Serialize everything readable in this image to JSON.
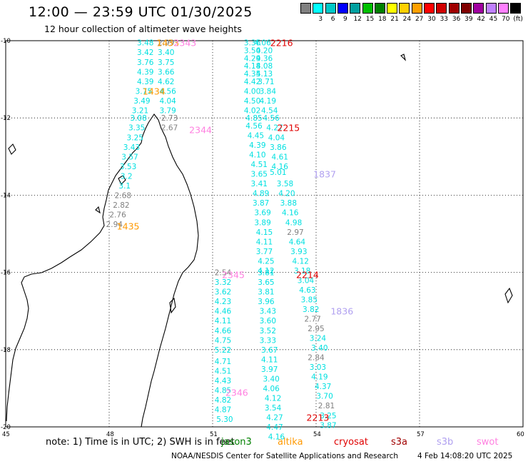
{
  "header": {
    "title": "12:00 — 23:59 UTC 01/30/2025",
    "subtitle": "12 hour collection of altimeter wave heights"
  },
  "legend": {
    "items": [
      {
        "label": "",
        "color": "#808080"
      },
      {
        "label": "3",
        "color": "#00ffff"
      },
      {
        "label": "6",
        "color": "#00c8c8"
      },
      {
        "label": "9",
        "color": "#0000ff"
      },
      {
        "label": "12",
        "color": "#00a0a0"
      },
      {
        "label": "15",
        "color": "#00c000"
      },
      {
        "label": "18",
        "color": "#008000"
      },
      {
        "label": "21",
        "color": "#ffff00"
      },
      {
        "label": "24",
        "color": "#ffd000"
      },
      {
        "label": "27",
        "color": "#ffa000"
      },
      {
        "label": "30",
        "color": "#ff0000"
      },
      {
        "label": "33",
        "color": "#d00000"
      },
      {
        "label": "36",
        "color": "#a00000"
      },
      {
        "label": "39",
        "color": "#800000"
      },
      {
        "label": "42",
        "color": "#a000a0"
      },
      {
        "label": "45",
        "color": "#c080ff"
      },
      {
        "label": "70",
        "color": "#ff80ff"
      },
      {
        "label": "(ft)",
        "color": "#000000"
      }
    ]
  },
  "axes": {
    "lat_labels": [
      "-10",
      "-12",
      "-14",
      "-16",
      "-18",
      "-20"
    ],
    "lon_labels": [
      "45",
      "48",
      "51",
      "54",
      "57",
      "60"
    ]
  },
  "chart_data": {
    "type": "scatter",
    "x_range": [
      45,
      60
    ],
    "y_range": [
      -20,
      -10
    ],
    "colors": {
      "cyan": "#00e0e0",
      "gray": "#808080",
      "orange": "#ff9900",
      "pink": "#ff80e0",
      "red": "#e00000",
      "lavender": "#b0a0f0"
    },
    "points": [
      {
        "lon": 49.05,
        "lat": -10.05,
        "value": "3.48",
        "color": "cyan"
      },
      {
        "lon": 49.05,
        "lat": -10.3,
        "value": "3.42",
        "color": "cyan"
      },
      {
        "lon": 49.05,
        "lat": -10.55,
        "value": "3.76",
        "color": "cyan"
      },
      {
        "lon": 49.05,
        "lat": -10.8,
        "value": "4.39",
        "color": "cyan"
      },
      {
        "lon": 49.05,
        "lat": -11.05,
        "value": "4.39",
        "color": "cyan"
      },
      {
        "lon": 49.0,
        "lat": -11.3,
        "value": "3.75",
        "color": "cyan"
      },
      {
        "lon": 48.95,
        "lat": -11.55,
        "value": "3.49",
        "color": "cyan"
      },
      {
        "lon": 48.9,
        "lat": -11.8,
        "value": "3.21",
        "color": "cyan"
      },
      {
        "lon": 48.85,
        "lat": -12.0,
        "value": "3.08",
        "color": "cyan"
      },
      {
        "lon": 48.8,
        "lat": -12.25,
        "value": "3.35",
        "color": "cyan"
      },
      {
        "lon": 48.75,
        "lat": -12.5,
        "value": "3.25",
        "color": "cyan"
      },
      {
        "lon": 48.65,
        "lat": -12.75,
        "value": "3.43",
        "color": "cyan"
      },
      {
        "lon": 48.6,
        "lat": -13.0,
        "value": "3.57",
        "color": "cyan"
      },
      {
        "lon": 48.55,
        "lat": -13.25,
        "value": "3.53",
        "color": "cyan"
      },
      {
        "lon": 48.5,
        "lat": -13.5,
        "value": "3.2",
        "color": "cyan"
      },
      {
        "lon": 48.45,
        "lat": -13.75,
        "value": "3.1",
        "color": "cyan"
      },
      {
        "lon": 48.4,
        "lat": -14.0,
        "value": "2.68",
        "color": "gray"
      },
      {
        "lon": 48.35,
        "lat": -14.25,
        "value": "2.82",
        "color": "gray"
      },
      {
        "lon": 48.25,
        "lat": -14.5,
        "value": "2.76",
        "color": "gray"
      },
      {
        "lon": 48.15,
        "lat": -14.75,
        "value": "2.94",
        "color": "gray"
      },
      {
        "lon": 49.65,
        "lat": -10.05,
        "value": "2.99",
        "color": "gray"
      },
      {
        "lon": 49.65,
        "lat": -10.3,
        "value": "3.40",
        "color": "cyan"
      },
      {
        "lon": 49.65,
        "lat": -10.55,
        "value": "3.75",
        "color": "cyan"
      },
      {
        "lon": 49.65,
        "lat": -10.8,
        "value": "3.66",
        "color": "cyan"
      },
      {
        "lon": 49.65,
        "lat": -11.05,
        "value": "4.62",
        "color": "cyan"
      },
      {
        "lon": 49.7,
        "lat": -11.3,
        "value": "4.56",
        "color": "cyan"
      },
      {
        "lon": 49.7,
        "lat": -11.55,
        "value": "4.04",
        "color": "cyan"
      },
      {
        "lon": 49.7,
        "lat": -11.8,
        "value": "3.79",
        "color": "cyan"
      },
      {
        "lon": 49.75,
        "lat": -12.0,
        "value": "2.73",
        "color": "gray"
      },
      {
        "lon": 49.75,
        "lat": -12.25,
        "value": "2.67",
        "color": "gray"
      },
      {
        "lon": 51.3,
        "lat": -16.0,
        "value": "2.54",
        "color": "gray"
      },
      {
        "lon": 51.3,
        "lat": -16.25,
        "value": "3.32",
        "color": "cyan"
      },
      {
        "lon": 51.3,
        "lat": -16.5,
        "value": "3.62",
        "color": "cyan"
      },
      {
        "lon": 51.3,
        "lat": -16.75,
        "value": "4.23",
        "color": "cyan"
      },
      {
        "lon": 51.3,
        "lat": -17.0,
        "value": "4.46",
        "color": "cyan"
      },
      {
        "lon": 51.3,
        "lat": -17.25,
        "value": "4.11",
        "color": "cyan"
      },
      {
        "lon": 51.3,
        "lat": -17.5,
        "value": "4.66",
        "color": "cyan"
      },
      {
        "lon": 51.3,
        "lat": -17.75,
        "value": "4.75",
        "color": "cyan"
      },
      {
        "lon": 51.3,
        "lat": -18.0,
        "value": "5.22",
        "color": "cyan"
      },
      {
        "lon": 51.3,
        "lat": -18.3,
        "value": "4.71",
        "color": "cyan"
      },
      {
        "lon": 51.3,
        "lat": -18.55,
        "value": "4.51",
        "color": "cyan"
      },
      {
        "lon": 51.3,
        "lat": -18.8,
        "value": "4.43",
        "color": "cyan"
      },
      {
        "lon": 51.3,
        "lat": -19.05,
        "value": "4.85",
        "color": "cyan"
      },
      {
        "lon": 51.3,
        "lat": -19.3,
        "value": "4.82",
        "color": "cyan"
      },
      {
        "lon": 51.3,
        "lat": -19.55,
        "value": "4.87",
        "color": "cyan"
      },
      {
        "lon": 51.35,
        "lat": -19.8,
        "value": "5.30",
        "color": "cyan"
      },
      {
        "lon": 52.15,
        "lat": -10.05,
        "value": "3.36",
        "color": "cyan"
      },
      {
        "lon": 52.15,
        "lat": -10.25,
        "value": "3.50",
        "color": "cyan"
      },
      {
        "lon": 52.15,
        "lat": -10.45,
        "value": "4.29",
        "color": "cyan"
      },
      {
        "lon": 52.15,
        "lat": -10.65,
        "value": "4.18",
        "color": "cyan"
      },
      {
        "lon": 52.15,
        "lat": -10.85,
        "value": "4.35",
        "color": "cyan"
      },
      {
        "lon": 52.15,
        "lat": -11.05,
        "value": "4.42",
        "color": "cyan"
      },
      {
        "lon": 52.15,
        "lat": -11.3,
        "value": "4.00",
        "color": "cyan"
      },
      {
        "lon": 52.15,
        "lat": -11.55,
        "value": "4.50",
        "color": "cyan"
      },
      {
        "lon": 52.15,
        "lat": -11.8,
        "value": "4.02",
        "color": "cyan"
      },
      {
        "lon": 52.2,
        "lat": -12.0,
        "value": "4.85",
        "color": "cyan"
      },
      {
        "lon": 52.2,
        "lat": -12.2,
        "value": "4.56",
        "color": "cyan"
      },
      {
        "lon": 52.25,
        "lat": -12.45,
        "value": "4.45",
        "color": "cyan"
      },
      {
        "lon": 52.3,
        "lat": -12.7,
        "value": "4.39",
        "color": "cyan"
      },
      {
        "lon": 52.3,
        "lat": -12.95,
        "value": "4.10",
        "color": "cyan"
      },
      {
        "lon": 52.35,
        "lat": -13.2,
        "value": "4.51",
        "color": "cyan"
      },
      {
        "lon": 52.35,
        "lat": -13.45,
        "value": "3.65",
        "color": "cyan"
      },
      {
        "lon": 52.35,
        "lat": -13.7,
        "value": "3.41",
        "color": "cyan"
      },
      {
        "lon": 52.4,
        "lat": -13.95,
        "value": "4.89",
        "color": "cyan"
      },
      {
        "lon": 52.4,
        "lat": -14.2,
        "value": "3.87",
        "color": "cyan"
      },
      {
        "lon": 52.45,
        "lat": -14.45,
        "value": "3.69",
        "color": "cyan"
      },
      {
        "lon": 52.45,
        "lat": -14.7,
        "value": "3.89",
        "color": "cyan"
      },
      {
        "lon": 52.5,
        "lat": -14.95,
        "value": "4.15",
        "color": "cyan"
      },
      {
        "lon": 52.5,
        "lat": -15.2,
        "value": "4.11",
        "color": "cyan"
      },
      {
        "lon": 52.5,
        "lat": -15.45,
        "value": "3.77",
        "color": "cyan"
      },
      {
        "lon": 52.55,
        "lat": -15.7,
        "value": "4.25",
        "color": "cyan"
      },
      {
        "lon": 52.55,
        "lat": -15.95,
        "value": "4.12",
        "color": "cyan"
      },
      {
        "lon": 52.45,
        "lat": -10.05,
        "value": "4.06",
        "color": "cyan"
      },
      {
        "lon": 52.5,
        "lat": -10.25,
        "value": "4.20",
        "color": "cyan"
      },
      {
        "lon": 52.5,
        "lat": -10.45,
        "value": "4.36",
        "color": "cyan"
      },
      {
        "lon": 52.5,
        "lat": -10.65,
        "value": "4.08",
        "color": "cyan"
      },
      {
        "lon": 52.5,
        "lat": -10.85,
        "value": "4.13",
        "color": "cyan"
      },
      {
        "lon": 52.55,
        "lat": -11.05,
        "value": "3.71",
        "color": "cyan"
      },
      {
        "lon": 52.6,
        "lat": -11.3,
        "value": "3.84",
        "color": "cyan"
      },
      {
        "lon": 52.6,
        "lat": -11.55,
        "value": "4.19",
        "color": "cyan"
      },
      {
        "lon": 52.65,
        "lat": -11.8,
        "value": "4.54",
        "color": "cyan"
      },
      {
        "lon": 52.7,
        "lat": -12.0,
        "value": "4.56",
        "color": "cyan"
      },
      {
        "lon": 52.8,
        "lat": -12.25,
        "value": "4.27",
        "color": "cyan"
      },
      {
        "lon": 52.85,
        "lat": -12.5,
        "value": "4.04",
        "color": "cyan"
      },
      {
        "lon": 52.9,
        "lat": -12.75,
        "value": "3.86",
        "color": "cyan"
      },
      {
        "lon": 52.95,
        "lat": -13.0,
        "value": "4.61",
        "color": "cyan"
      },
      {
        "lon": 52.95,
        "lat": -13.25,
        "value": "4.16",
        "color": "cyan"
      },
      {
        "lon": 52.9,
        "lat": -13.4,
        "value": "5.01",
        "color": "cyan"
      },
      {
        "lon": 53.1,
        "lat": -13.7,
        "value": "3.58",
        "color": "cyan"
      },
      {
        "lon": 53.15,
        "lat": -13.95,
        "value": "4.20",
        "color": "cyan"
      },
      {
        "lon": 53.2,
        "lat": -14.2,
        "value": "3.88",
        "color": "cyan"
      },
      {
        "lon": 53.25,
        "lat": -14.45,
        "value": "4.16",
        "color": "cyan"
      },
      {
        "lon": 53.35,
        "lat": -14.7,
        "value": "4.98",
        "color": "cyan"
      },
      {
        "lon": 53.4,
        "lat": -14.95,
        "value": "2.97",
        "color": "gray"
      },
      {
        "lon": 53.45,
        "lat": -15.2,
        "value": "4.64",
        "color": "cyan"
      },
      {
        "lon": 53.5,
        "lat": -15.45,
        "value": "3.93",
        "color": "cyan"
      },
      {
        "lon": 53.55,
        "lat": -15.7,
        "value": "4.12",
        "color": "cyan"
      },
      {
        "lon": 53.6,
        "lat": -15.95,
        "value": "3.18",
        "color": "cyan"
      },
      {
        "lon": 52.55,
        "lat": -16.0,
        "value": "3.81",
        "color": "cyan"
      },
      {
        "lon": 52.55,
        "lat": -16.25,
        "value": "3.65",
        "color": "cyan"
      },
      {
        "lon": 52.55,
        "lat": -16.5,
        "value": "3.81",
        "color": "cyan"
      },
      {
        "lon": 52.55,
        "lat": -16.75,
        "value": "3.96",
        "color": "cyan"
      },
      {
        "lon": 52.6,
        "lat": -17.0,
        "value": "3.43",
        "color": "cyan"
      },
      {
        "lon": 52.6,
        "lat": -17.25,
        "value": "3.60",
        "color": "cyan"
      },
      {
        "lon": 52.6,
        "lat": -17.5,
        "value": "3.52",
        "color": "cyan"
      },
      {
        "lon": 52.6,
        "lat": -17.75,
        "value": "3.33",
        "color": "cyan"
      },
      {
        "lon": 52.65,
        "lat": -18.0,
        "value": "3.67",
        "color": "cyan"
      },
      {
        "lon": 52.65,
        "lat": -18.25,
        "value": "4.11",
        "color": "cyan"
      },
      {
        "lon": 52.65,
        "lat": -18.5,
        "value": "3.97",
        "color": "cyan"
      },
      {
        "lon": 52.7,
        "lat": -18.75,
        "value": "3.40",
        "color": "cyan"
      },
      {
        "lon": 52.7,
        "lat": -19.0,
        "value": "4.06",
        "color": "cyan"
      },
      {
        "lon": 52.75,
        "lat": -19.25,
        "value": "4.12",
        "color": "cyan"
      },
      {
        "lon": 52.75,
        "lat": -19.5,
        "value": "3.54",
        "color": "cyan"
      },
      {
        "lon": 52.8,
        "lat": -19.75,
        "value": "4.27",
        "color": "cyan"
      },
      {
        "lon": 52.8,
        "lat": -20.0,
        "value": "4.47",
        "color": "cyan"
      },
      {
        "lon": 52.85,
        "lat": -20.25,
        "value": "4.16",
        "color": "cyan"
      },
      {
        "lon": 53.7,
        "lat": -16.2,
        "value": "3.04",
        "color": "cyan"
      },
      {
        "lon": 53.75,
        "lat": -16.45,
        "value": "4.63",
        "color": "cyan"
      },
      {
        "lon": 53.8,
        "lat": -16.7,
        "value": "3.85",
        "color": "cyan"
      },
      {
        "lon": 53.85,
        "lat": -16.95,
        "value": "3.82",
        "color": "cyan"
      },
      {
        "lon": 53.9,
        "lat": -17.2,
        "value": "2.77",
        "color": "gray"
      },
      {
        "lon": 54.0,
        "lat": -17.45,
        "value": "2.95",
        "color": "gray"
      },
      {
        "lon": 54.05,
        "lat": -17.7,
        "value": "3.24",
        "color": "cyan"
      },
      {
        "lon": 54.1,
        "lat": -17.95,
        "value": "3.40",
        "color": "cyan"
      },
      {
        "lon": 54.0,
        "lat": -18.2,
        "value": "2.84",
        "color": "gray"
      },
      {
        "lon": 54.05,
        "lat": -18.45,
        "value": "3.03",
        "color": "cyan"
      },
      {
        "lon": 54.1,
        "lat": -18.7,
        "value": "4.19",
        "color": "cyan"
      },
      {
        "lon": 54.2,
        "lat": -18.95,
        "value": "4.37",
        "color": "cyan"
      },
      {
        "lon": 54.25,
        "lat": -19.2,
        "value": "3.70",
        "color": "cyan"
      },
      {
        "lon": 54.3,
        "lat": -19.45,
        "value": "2.81",
        "color": "gray"
      },
      {
        "lon": 54.35,
        "lat": -19.7,
        "value": "3.25",
        "color": "cyan"
      },
      {
        "lon": 54.35,
        "lat": -19.95,
        "value": "3.87",
        "color": "cyan"
      }
    ],
    "pass_labels": [
      {
        "lon": 49.7,
        "lat": -10.05,
        "value": "1433",
        "color": "orange"
      },
      {
        "lon": 50.2,
        "lat": -10.05,
        "value": "2343",
        "color": "pink"
      },
      {
        "lon": 49.3,
        "lat": -11.3,
        "value": "1434",
        "color": "orange"
      },
      {
        "lon": 50.65,
        "lat": -12.3,
        "value": "2344",
        "color": "pink"
      },
      {
        "lon": 48.55,
        "lat": -14.8,
        "value": "1435",
        "color": "orange"
      },
      {
        "lon": 51.6,
        "lat": -16.05,
        "value": "2345",
        "color": "pink"
      },
      {
        "lon": 51.7,
        "lat": -19.1,
        "value": "2346",
        "color": "pink"
      },
      {
        "lon": 53.0,
        "lat": -10.05,
        "value": "2216",
        "color": "red"
      },
      {
        "lon": 53.2,
        "lat": -12.25,
        "value": "2215",
        "color": "red"
      },
      {
        "lon": 53.75,
        "lat": -16.05,
        "value": "2214",
        "color": "red"
      },
      {
        "lon": 54.05,
        "lat": -19.75,
        "value": "2213",
        "color": "red"
      },
      {
        "lon": 54.25,
        "lat": -13.45,
        "value": "1837",
        "color": "lavender"
      },
      {
        "lon": 54.75,
        "lat": -17.0,
        "value": "1836",
        "color": "lavender"
      }
    ]
  },
  "footer": {
    "note": "note:  1) Time is in UTC;  2) SWH is in feet",
    "satellites": [
      {
        "name": "jason3",
        "color": "#008000"
      },
      {
        "name": "altika",
        "color": "#ff9900"
      },
      {
        "name": "cryosat",
        "color": "#e00000"
      },
      {
        "name": "s3a",
        "color": "#a00000"
      },
      {
        "name": "s3b",
        "color": "#b0a0f0"
      },
      {
        "name": "swot",
        "color": "#ff80e0"
      }
    ],
    "credit": "NOAA/NESDIS Center for Satellite Applications and Research",
    "timestamp": "4 Feb 14:08:20 UTC 2025"
  }
}
